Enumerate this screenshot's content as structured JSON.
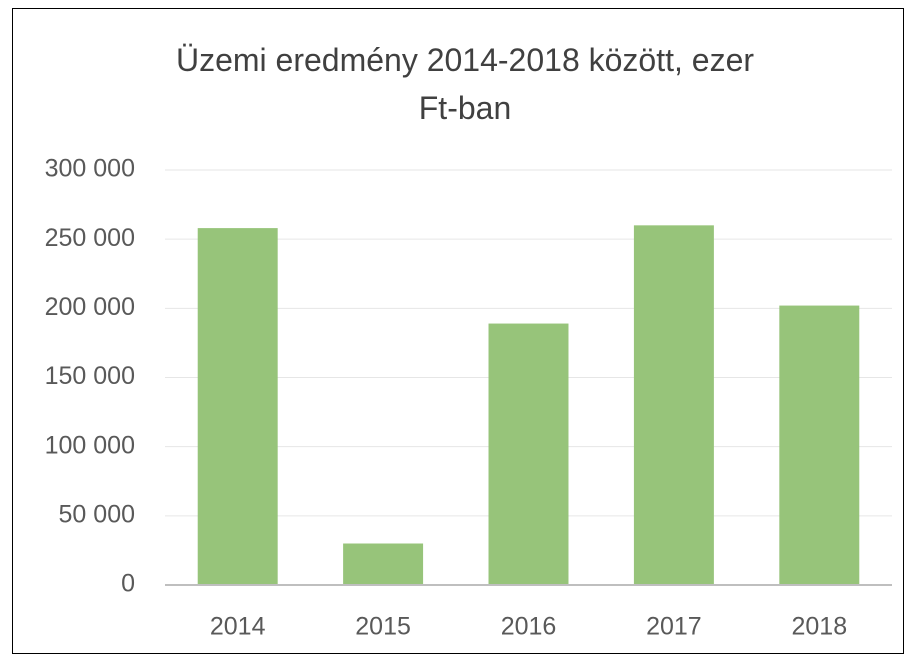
{
  "chart_data": {
    "type": "bar",
    "title": "Üzemi eredmény 2014-2018 között, ezer Ft-ban",
    "categories": [
      "2014",
      "2015",
      "2016",
      "2017",
      "2018"
    ],
    "values": [
      258000,
      30000,
      189000,
      260000,
      202000
    ],
    "color": "#97c47a",
    "ylim": [
      0,
      300000
    ],
    "yticks": [
      0,
      {
        "value": 50000,
        "label": "50 000"
      },
      {
        "value": 100000,
        "label": "100 000"
      },
      {
        "value": 150000,
        "label": "150 000"
      },
      {
        "value": 200000,
        "label": "200 000"
      },
      {
        "value": 250000,
        "label": "250 000"
      },
      {
        "value": 300000,
        "label": "300 000"
      }
    ],
    "grid": true
  }
}
